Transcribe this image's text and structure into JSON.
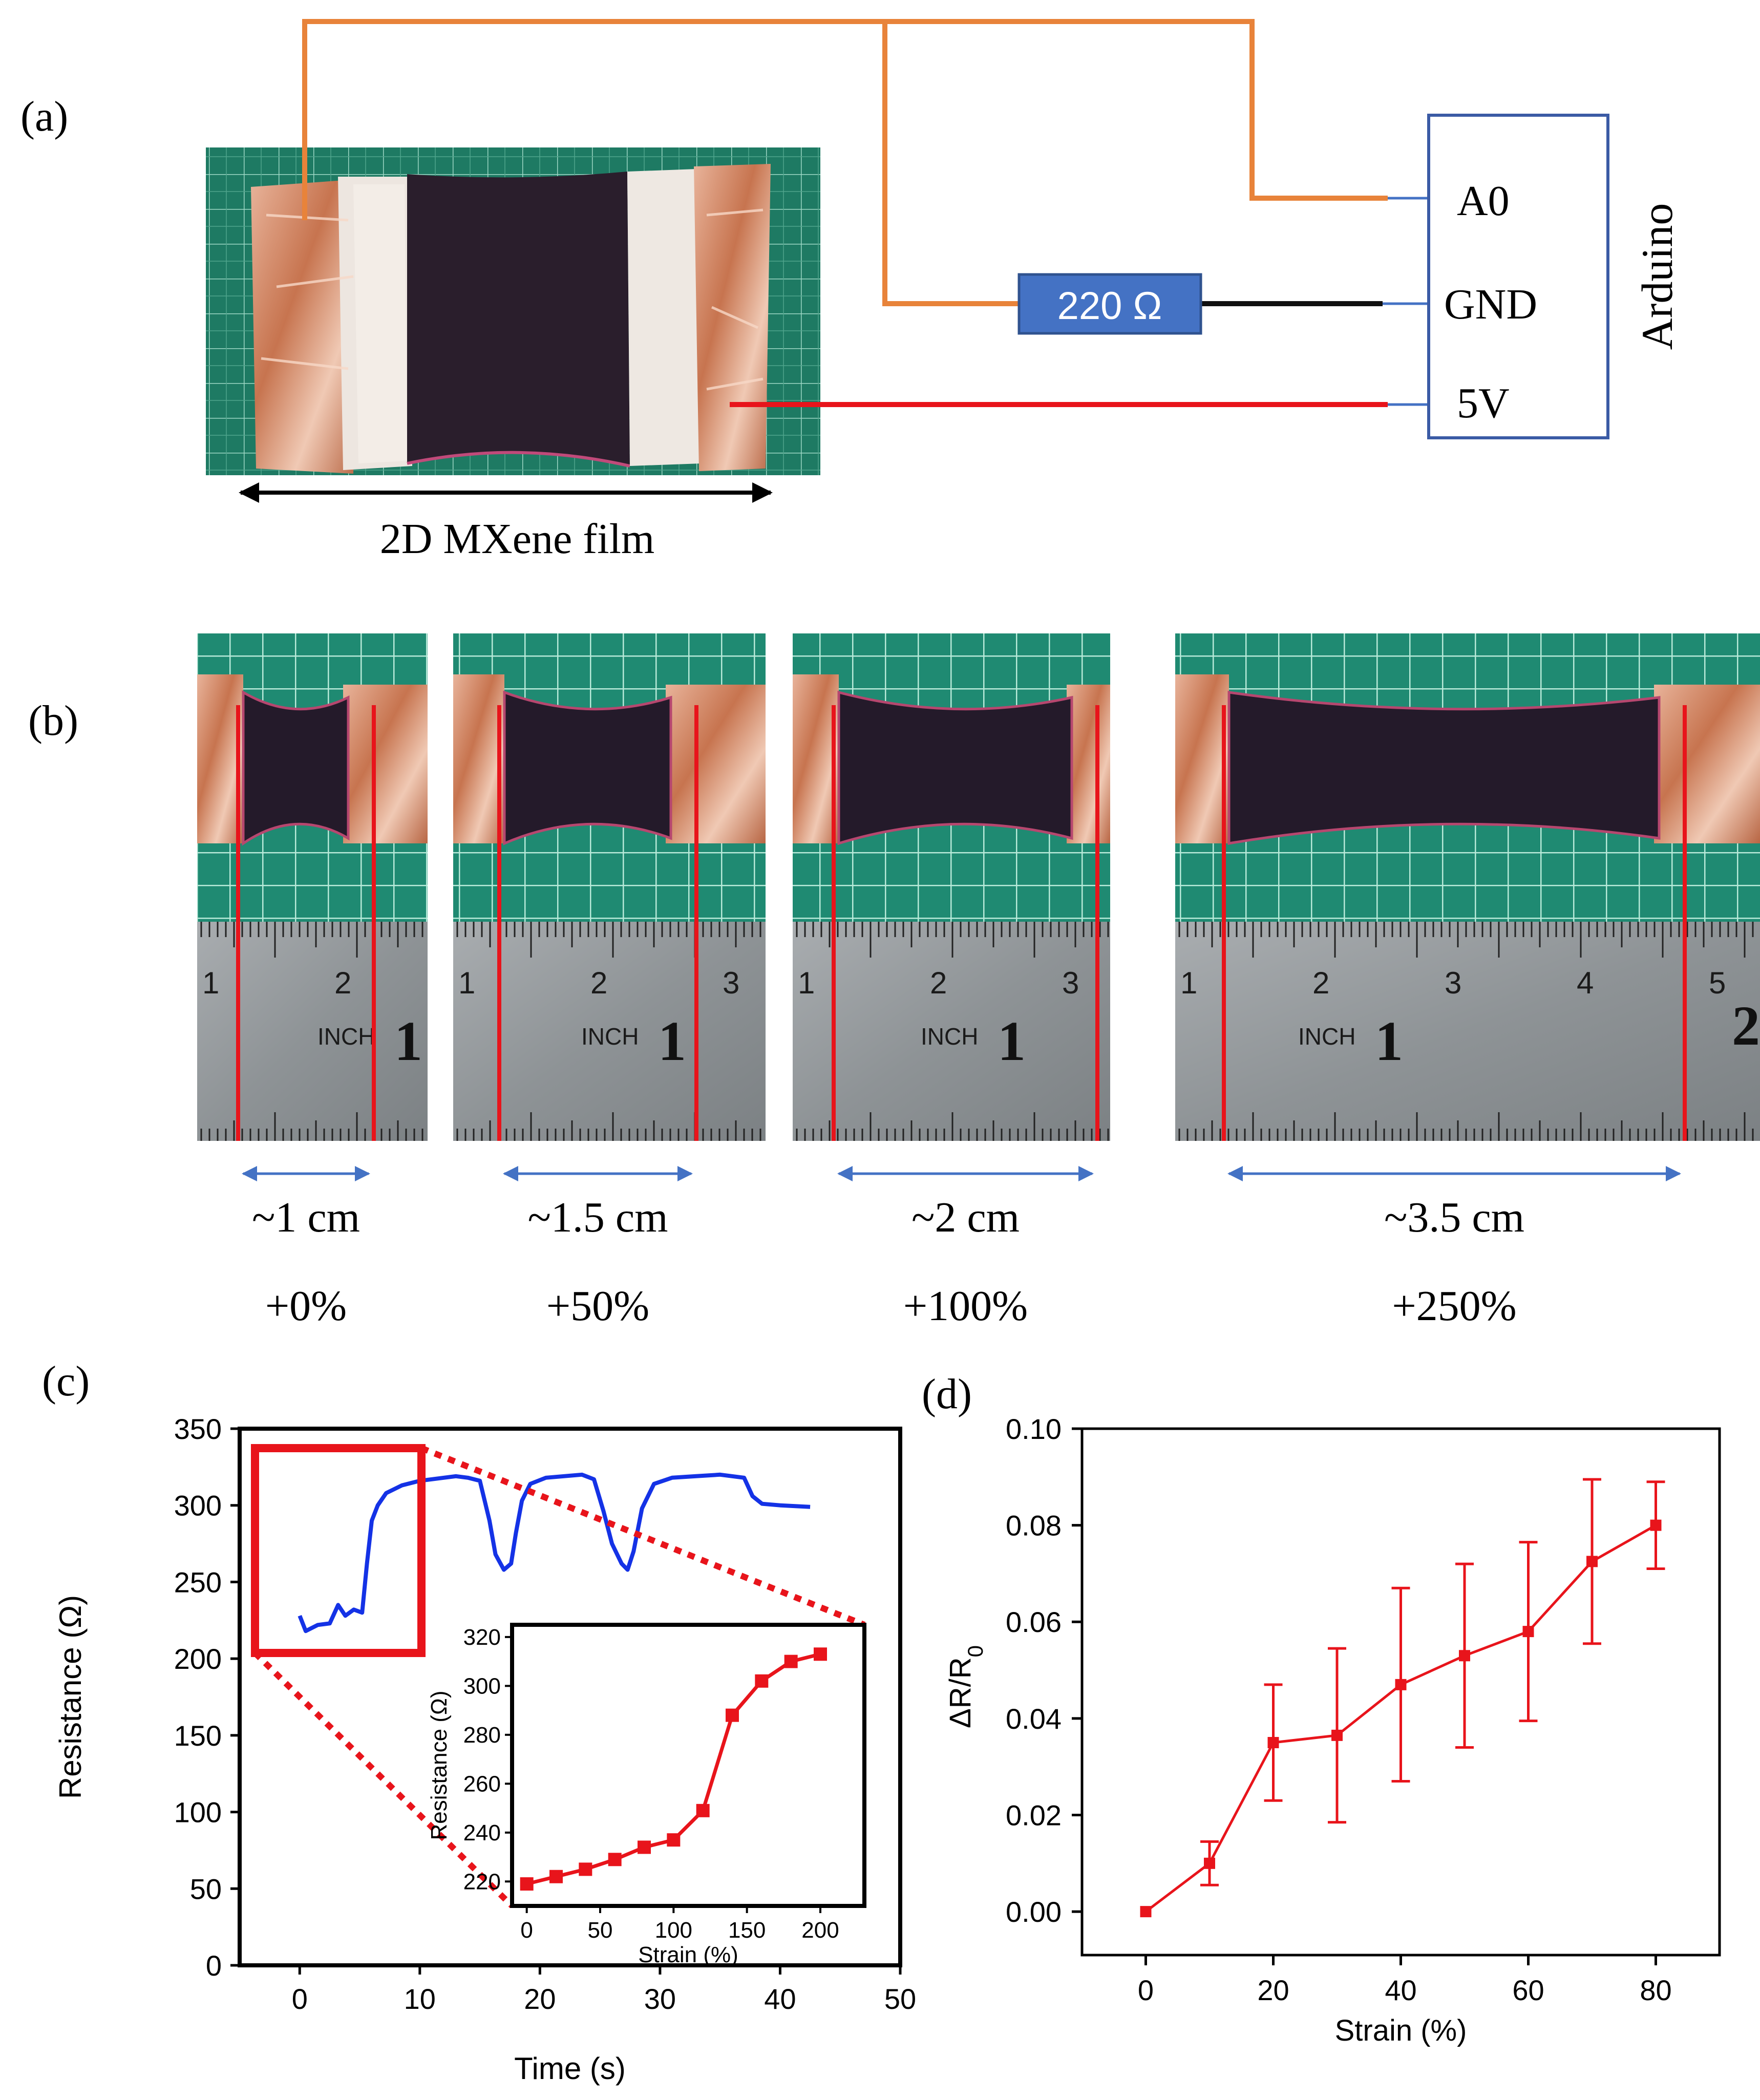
{
  "panel_a": {
    "label": "(a)",
    "film_caption": "2D MXene film",
    "resistor_label": "220 Ω",
    "arduino_label": "Arduino",
    "pins": [
      "A0",
      "GND",
      "5V"
    ],
    "colors": {
      "wire_orange": "#E8833A",
      "wire_red": "#E8141B",
      "wire_black": "#111111",
      "resistor_fill": "#4472C4",
      "arduino_border": "#3B5BA5"
    }
  },
  "panel_b": {
    "label": "(b)",
    "samples": [
      {
        "length": "~1 cm",
        "strain": "+0%"
      },
      {
        "length": "~1.5 cm",
        "strain": "+50%"
      },
      {
        "length": "~2 cm",
        "strain": "+100%"
      },
      {
        "length": "~3.5 cm",
        "strain": "+250%"
      }
    ],
    "ruler_inch_label": "INCH",
    "ruler_marks": [
      [
        "1",
        "2"
      ],
      [
        "1",
        "2",
        "3"
      ],
      [
        "1",
        "2",
        "3"
      ],
      [
        "1",
        "2",
        "3",
        "4",
        "5"
      ]
    ],
    "ruler_big_digit": "1",
    "ruler_big_digit_b": "2"
  },
  "panel_c": {
    "label": "(c)",
    "chart_data": {
      "type": "line",
      "title": "",
      "xlabel": "Time (s)",
      "ylabel": "Resistance (Ω)",
      "xlim": [
        -5,
        50
      ],
      "ylim": [
        0,
        350
      ],
      "xticks": [
        0,
        10,
        20,
        30,
        40,
        50
      ],
      "yticks": [
        0,
        50,
        100,
        150,
        200,
        250,
        300,
        350
      ],
      "series": [
        {
          "name": "Resistance",
          "color": "#1432E6",
          "x": [
            0,
            0.5,
            1.5,
            2.5,
            3.2,
            3.8,
            4.5,
            5.2,
            5.6,
            6.0,
            6.5,
            7.2,
            8.5,
            10,
            12,
            13,
            14,
            15,
            15.8,
            16.3,
            17,
            17.6,
            18,
            18.5,
            19.2,
            20.5,
            22,
            23.5,
            24.5,
            25.3,
            26,
            26.8,
            27.3,
            27.8,
            28.5,
            29.5,
            31,
            33,
            35,
            37,
            37.7,
            38.5,
            40,
            42.5
          ],
          "y": [
            228,
            218,
            222,
            223,
            235,
            228,
            232,
            230,
            262,
            290,
            300,
            308,
            313,
            316,
            318,
            319,
            318,
            316,
            290,
            268,
            258,
            262,
            282,
            303,
            314,
            318,
            319,
            320,
            317,
            296,
            275,
            262,
            258,
            270,
            298,
            314,
            318,
            319,
            320,
            318,
            306,
            301,
            300,
            299
          ]
        }
      ],
      "inset": {
        "type": "line",
        "xlabel": "Strain (%)",
        "ylabel": "Resistance (Ω)",
        "xlim": [
          -10,
          230
        ],
        "ylim": [
          210,
          325
        ],
        "xticks": [
          0,
          50,
          100,
          150,
          200
        ],
        "yticks": [
          220,
          240,
          260,
          280,
          300,
          320
        ],
        "series": [
          {
            "name": "Resistance vs strain",
            "color": "#E8141B",
            "x": [
              0,
              20,
              40,
              60,
              80,
              100,
              120,
              140,
              160,
              180,
              200
            ],
            "y": [
              219,
              222,
              225,
              229,
              234,
              237,
              249,
              288,
              302,
              310,
              313
            ]
          }
        ]
      }
    }
  },
  "panel_d": {
    "label": "(d)",
    "chart_data": {
      "type": "line",
      "title": "",
      "xlabel": "Strain (%)",
      "ylabel": "ΔR/R",
      "ylabel_sub": "0",
      "xlim": [
        -10,
        90
      ],
      "ylim": [
        -0.009,
        0.1
      ],
      "xticks": [
        0,
        20,
        40,
        60,
        80
      ],
      "yticks": [
        "0.00",
        "0.02",
        "0.04",
        "0.06",
        "0.08",
        "0.10"
      ],
      "series": [
        {
          "name": "ΔR/R0",
          "color": "#E8141B",
          "x": [
            0,
            10,
            20,
            30,
            40,
            50,
            60,
            70,
            80
          ],
          "y": [
            0.0,
            0.01,
            0.035,
            0.0365,
            0.047,
            0.053,
            0.058,
            0.0725,
            0.08
          ],
          "err": [
            0.0,
            0.0045,
            0.012,
            0.018,
            0.02,
            0.019,
            0.0185,
            0.017,
            0.009
          ]
        }
      ]
    }
  }
}
